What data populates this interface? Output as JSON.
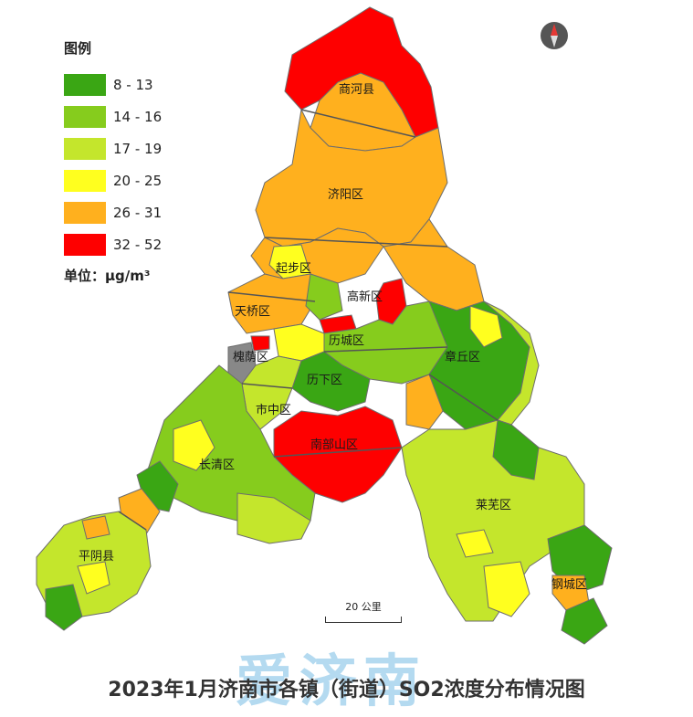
{
  "legend": {
    "title": "图例",
    "items": [
      {
        "label": "8 - 13",
        "color": "#3aa614"
      },
      {
        "label": "14 - 16",
        "color": "#86cc1d"
      },
      {
        "label": "17 - 19",
        "color": "#c4e62c"
      },
      {
        "label": "20 - 25",
        "color": "#ffff1f"
      },
      {
        "label": "26 - 31",
        "color": "#ffb01e"
      },
      {
        "label": "32 - 52",
        "color": "#fe0000"
      }
    ],
    "unit": "单位：μg/m³"
  },
  "districts": {
    "shanghe": "商河县",
    "jiyang": "济阳区",
    "qibu": "起步区",
    "gaoxin": "高新区",
    "tianqiao": "天桥区",
    "licheng": "历城区",
    "huaiyin": "槐荫区",
    "zhangqiu": "章丘区",
    "lixia": "历下区",
    "shizhong": "市中区",
    "nanbushan": "南部山区",
    "changqing": "长清区",
    "laiwu": "莱芜区",
    "pingyin": "平阴县",
    "gangcheng": "钢城区"
  },
  "scale_label": "20 公里",
  "watermark": "爱济南",
  "title": "2023年1月济南市各镇（街道）SO2浓度分布情况图",
  "colors": {
    "no_data": "#888888",
    "border": "#666666"
  }
}
